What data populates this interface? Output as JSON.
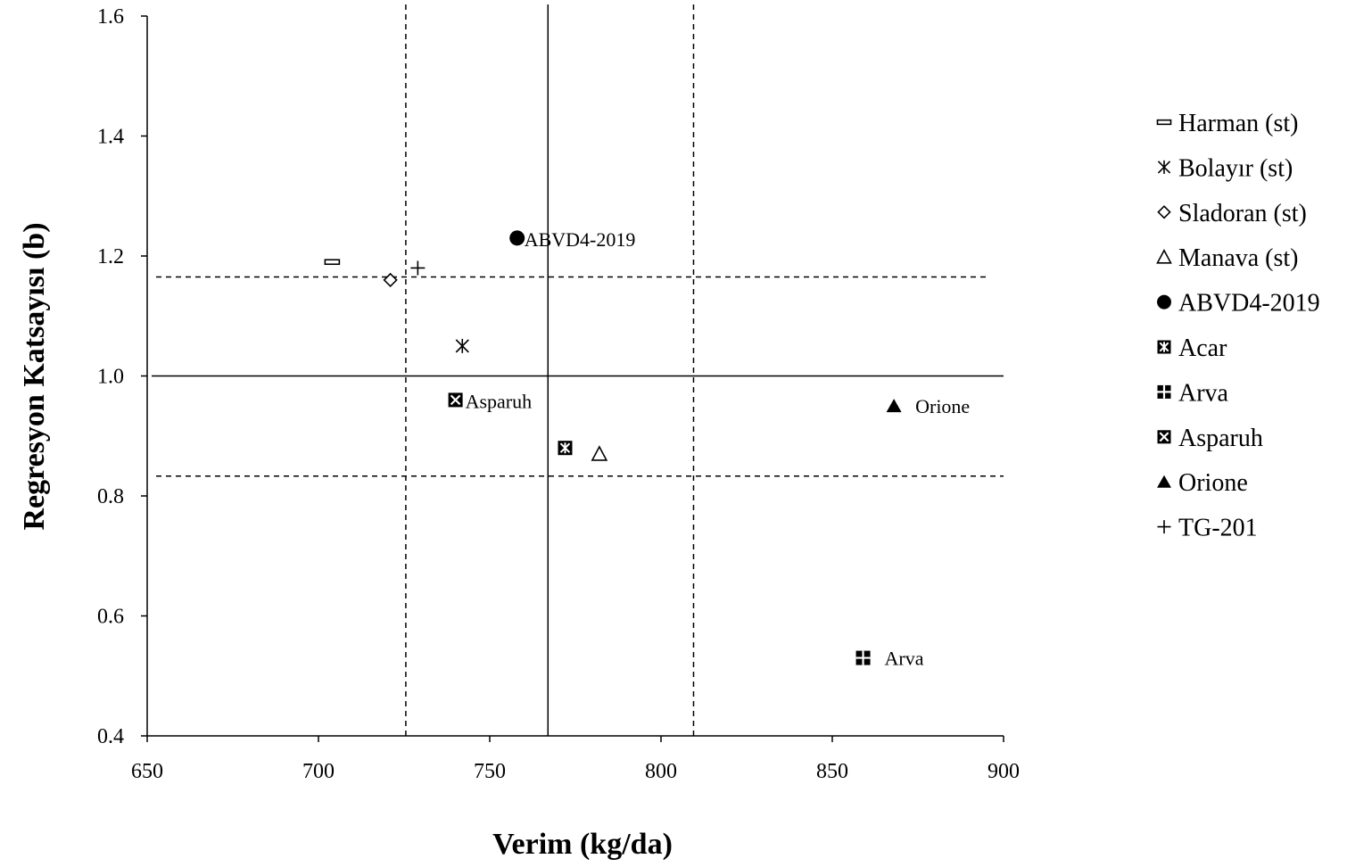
{
  "chart_data": {
    "type": "scatter",
    "xlabel": "Verim (kg/da)",
    "ylabel": "Regresyon Katsayısı (b)",
    "xlim": [
      650,
      900
    ],
    "ylim": [
      0.4,
      1.6
    ],
    "x_ticks": [
      "650",
      "700",
      "750",
      "800",
      "850",
      "900"
    ],
    "y_ticks": [
      "0.4",
      "0.6",
      "0.8",
      "1.0",
      "1.2",
      "1.4",
      "1.6"
    ],
    "reference_lines": {
      "mean_yield": 767,
      "yield_lower": 725.5,
      "yield_upper": 809.5,
      "b_equal_one": 1.0,
      "b_upper": 1.165,
      "b_lower": 0.833
    },
    "series": [
      {
        "name": "Harman (st)",
        "marker": "dash",
        "x": 704,
        "y": 1.19,
        "label": ""
      },
      {
        "name": "Bolayır (st)",
        "marker": "asterisk",
        "x": 742,
        "y": 1.05,
        "label": ""
      },
      {
        "name": "Sladoran (st)",
        "marker": "diamond-open",
        "x": 721,
        "y": 1.16,
        "label": ""
      },
      {
        "name": "Manava (st)",
        "marker": "triangle-open",
        "x": 782,
        "y": 0.87,
        "label": ""
      },
      {
        "name": "ABVD4-2019",
        "marker": "circle-filled",
        "x": 758,
        "y": 1.23,
        "label": "ABVD4-2019"
      },
      {
        "name": "Acar",
        "marker": "square-asterisk",
        "x": 772,
        "y": 0.88,
        "label": ""
      },
      {
        "name": "Arva",
        "marker": "square-plus",
        "x": 859,
        "y": 0.53,
        "label": "Arva"
      },
      {
        "name": "Asparuh",
        "marker": "square-x",
        "x": 740,
        "y": 0.96,
        "label": "Asparuh"
      },
      {
        "name": "Orione",
        "marker": "triangle-filled",
        "x": 868,
        "y": 0.95,
        "label": "Orione"
      },
      {
        "name": "TG-201",
        "marker": "plus",
        "x": 729,
        "y": 1.18,
        "label": ""
      }
    ],
    "legend_position": "right"
  }
}
